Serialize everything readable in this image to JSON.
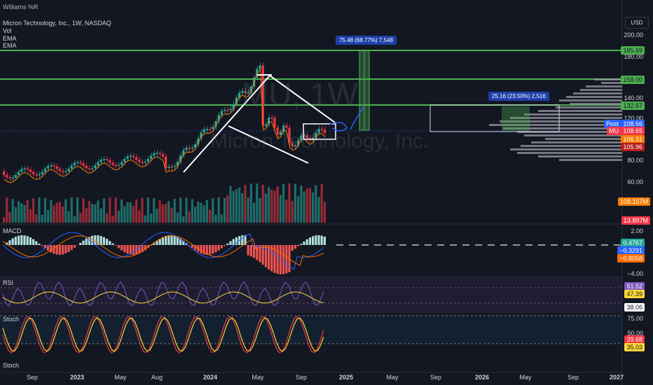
{
  "header": {
    "top_indicator": "Williams %R",
    "symbol_line": "Micron Technology, Inc., 1W, NASDAQ",
    "indicators": [
      "Vol",
      "EMA",
      "EMA"
    ],
    "currency": "USD"
  },
  "watermark": {
    "ticker": "MU, 1W",
    "name": "Micron Technology, Inc."
  },
  "price_axis": {
    "ticks": [
      "200.00",
      "180.00",
      "140.00",
      "120.00",
      "80.00",
      "60.00"
    ],
    "levels": [
      {
        "label": "185.69",
        "color": "#4caf50"
      },
      {
        "label": "158.00",
        "color": "#4caf50"
      },
      {
        "label": "132.67",
        "color": "#4caf50"
      }
    ],
    "tags": [
      {
        "name": "Post",
        "label": "108.66",
        "color": "#2962ff"
      },
      {
        "name": "MU",
        "label": "108.65",
        "color": "#f23645"
      },
      {
        "name": "ema-fast",
        "label": "106.31",
        "color": "#f57c00"
      },
      {
        "name": "ema-slow",
        "label": "105.96",
        "color": "#b71c1c"
      },
      {
        "name": "vol-ema",
        "label": "108.157M",
        "color": "#f57c00"
      },
      {
        "name": "volume",
        "label": "13.897M",
        "color": "#f23645"
      }
    ]
  },
  "annotations": {
    "measure_top": "75.48 (68.77%) 7,548",
    "measure_right": "25.16 (23.50%) 2,516"
  },
  "macd": {
    "label": "MACD",
    "ticks": [
      "2.00",
      "−4.00"
    ],
    "tags": [
      {
        "label": "0.4767",
        "color": "#26a69a"
      },
      {
        "label": "−0.3291",
        "color": "#2962ff"
      },
      {
        "label": "−0.8058",
        "color": "#ff6d00"
      }
    ]
  },
  "rsi": {
    "label": "RSI",
    "tags": [
      {
        "label": "51.52",
        "color": "#7e57c2"
      },
      {
        "label": "47.39",
        "color": "#fdd835"
      },
      {
        "label": "38.06",
        "color": "#ffffff"
      }
    ]
  },
  "stoch": {
    "label": "Stoch",
    "label2": "Stoch",
    "ticks": [
      "75.00",
      "50.00"
    ],
    "tags": [
      {
        "label": "39.68",
        "color": "#f23645"
      },
      {
        "label": "35.03",
        "color": "#fdd835"
      }
    ]
  },
  "time_axis": [
    {
      "label": "Sep",
      "bold": false
    },
    {
      "label": "2023",
      "bold": true
    },
    {
      "label": "May",
      "bold": false
    },
    {
      "label": "Aug",
      "bold": false
    },
    {
      "label": "2024",
      "bold": true
    },
    {
      "label": "May",
      "bold": false
    },
    {
      "label": "Sep",
      "bold": false
    },
    {
      "label": "2025",
      "bold": true
    },
    {
      "label": "May",
      "bold": false
    },
    {
      "label": "Sep",
      "bold": false
    },
    {
      "label": "2026",
      "bold": true
    },
    {
      "label": "May",
      "bold": false
    },
    {
      "label": "Sep",
      "bold": false
    },
    {
      "label": "2027",
      "bold": true
    }
  ]
}
